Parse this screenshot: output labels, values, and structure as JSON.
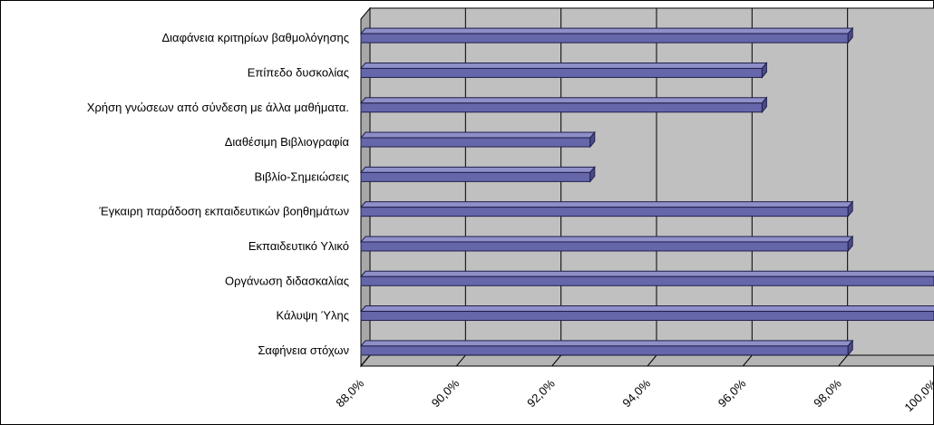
{
  "chart_data": {
    "type": "bar",
    "orientation": "horizontal",
    "style": "3d",
    "categories": [
      "Διαφάνεια κριτηρίων βαθμολόγησης",
      "Επίπεδο δυσκολίας",
      "Χρήση γνώσεων από σύνδεση με άλλα μαθήματα.",
      "Διαθέσιμη Βιβλιογραφία",
      "Βιβλίο-Σημειώσεις",
      "Έγκαιρη παράδοση εκπαιδευτικών βοηθημάτων",
      "Εκπαιδευτικό Υλικό",
      "Οργάνωση διδασκαλίας",
      "Κάλυψη Ύλης",
      "Σαφήνεια στόχων"
    ],
    "values": [
      98.2,
      96.4,
      96.4,
      92.8,
      92.8,
      98.2,
      98.2,
      100.0,
      100.0,
      98.2
    ],
    "xlim": [
      88.0,
      100.0
    ],
    "xticks": [
      "88,0%",
      "90,0%",
      "92,0%",
      "94,0%",
      "96,0%",
      "98,0%",
      "100,0%"
    ],
    "xtick_values": [
      88,
      90,
      92,
      94,
      96,
      98,
      100
    ],
    "grid": true,
    "colors": {
      "bar_face": "#6666aa",
      "bar_top": "#8e8ec8",
      "bar_edge": "#1f1f4a",
      "plot_wall": "#c0c0c0",
      "grid": "#000000"
    }
  }
}
